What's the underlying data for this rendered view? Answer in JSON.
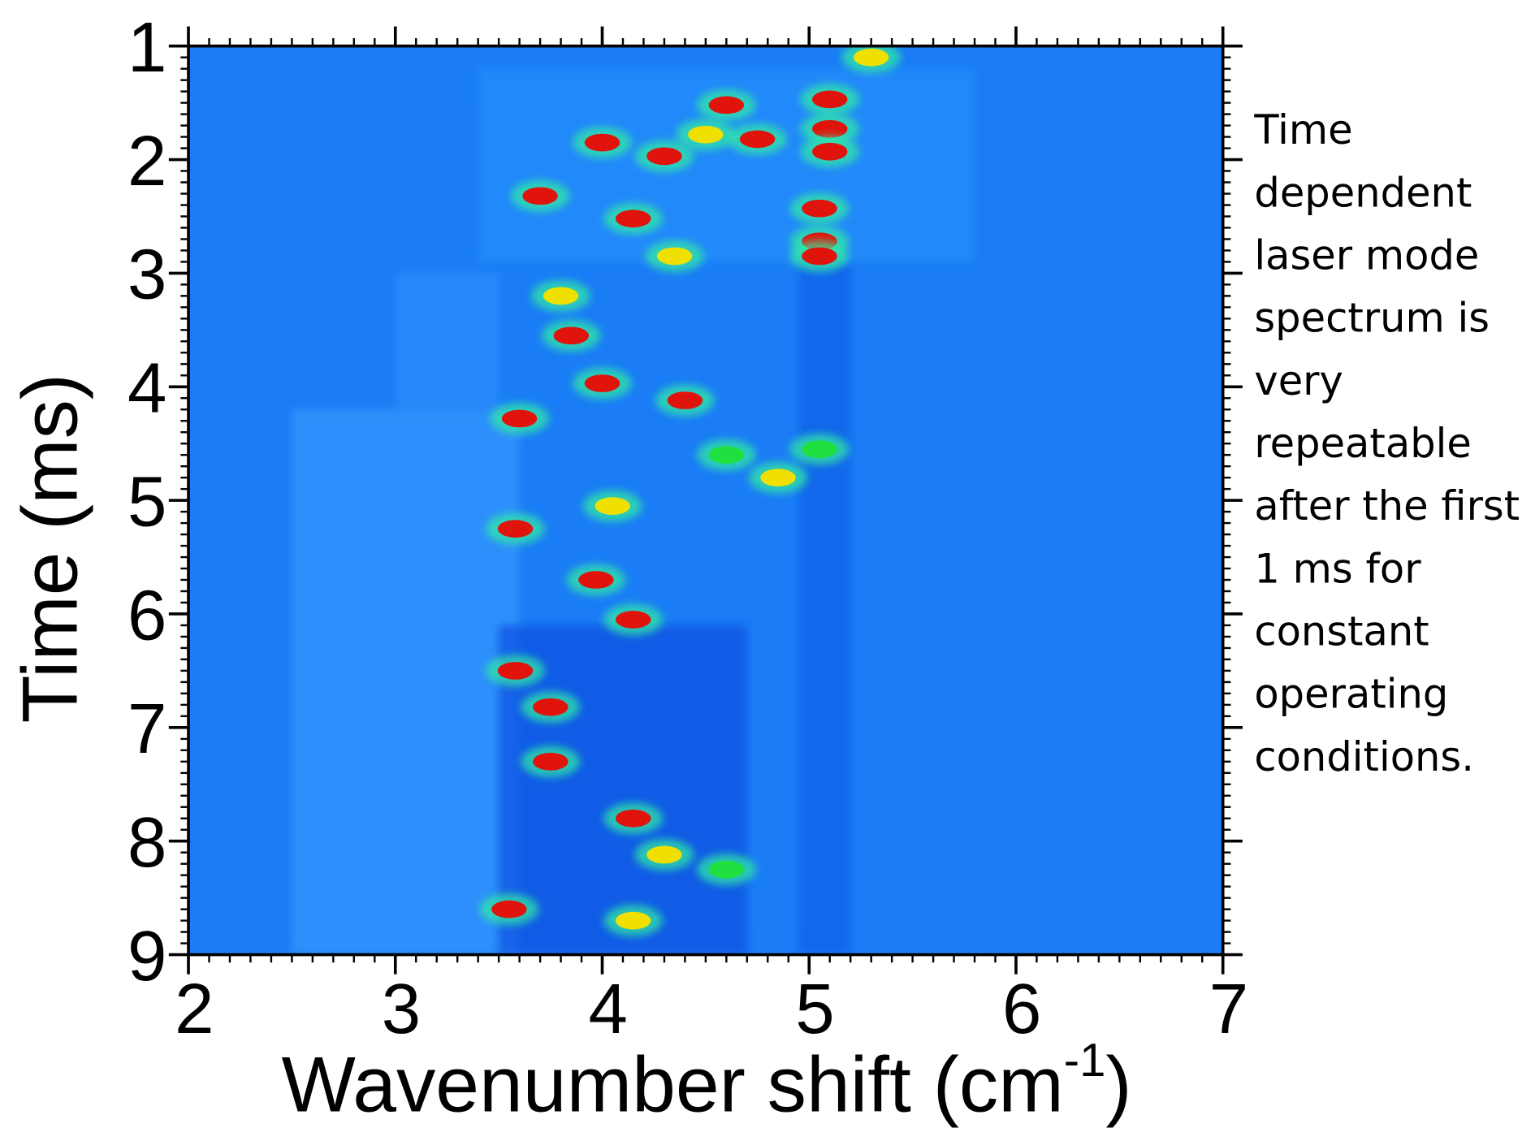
{
  "chart_data": {
    "type": "heatmap",
    "xlabel": {
      "text": "Wavenumber shift (cm",
      "sup": "-1",
      "end": ")"
    },
    "ylabel": "Time (ms)",
    "xlim": [
      2,
      7
    ],
    "xticks": [
      2,
      3,
      4,
      5,
      6,
      7
    ],
    "ylim": [
      9,
      1
    ],
    "yticks": [
      1,
      2,
      3,
      4,
      5,
      6,
      7,
      8,
      9
    ],
    "background": "#1a7df5",
    "annotation": [
      "Time",
      "dependent",
      "laser mode",
      "spectrum is",
      "very",
      "repeatable",
      "after the first",
      "1 ms for",
      "constant",
      "operating",
      "conditions."
    ],
    "peaks": {
      "x": [
        4.0,
        4.3,
        3.7,
        5.1,
        5.1,
        5.1,
        4.15,
        5.05,
        4.6,
        4.5,
        4.75,
        5.3,
        5.05,
        5.05,
        4.35,
        3.8,
        3.85,
        4.0,
        4.4,
        3.6,
        4.85,
        3.58,
        3.97,
        4.15,
        3.58,
        3.75,
        3.75,
        4.15,
        4.3,
        3.55,
        4.15,
        4.6,
        4.6,
        5.05,
        4.05
      ],
      "y": [
        1.85,
        1.97,
        2.32,
        1.47,
        1.73,
        1.93,
        2.52,
        2.43,
        1.52,
        1.78,
        1.82,
        1.1,
        2.72,
        2.85,
        2.85,
        3.2,
        3.55,
        3.97,
        4.12,
        4.28,
        4.8,
        5.25,
        5.7,
        6.05,
        6.5,
        6.82,
        7.3,
        7.8,
        8.12,
        8.6,
        8.7,
        8.25,
        4.6,
        4.55,
        5.05
      ],
      "colors": [
        "#e0140c",
        "#e0140c",
        "#e0140c",
        "#e0140c",
        "#e0140c",
        "#e0140c",
        "#e0140c",
        "#e0140c",
        "#e0140c",
        "#f0e000",
        "#e0140c",
        "#f0e000",
        "#e0140c",
        "#e0140c",
        "#f0e000",
        "#f0e000",
        "#e0140c",
        "#e0140c",
        "#e0140c",
        "#e0140c",
        "#f0e000",
        "#e0140c",
        "#e0140c",
        "#e0140c",
        "#e0140c",
        "#e0140c",
        "#e0140c",
        "#e0140c",
        "#f0e000",
        "#e0140c",
        "#f0e000",
        "#20e040",
        "#20e040",
        "#20e040",
        "#f0e000"
      ]
    }
  }
}
